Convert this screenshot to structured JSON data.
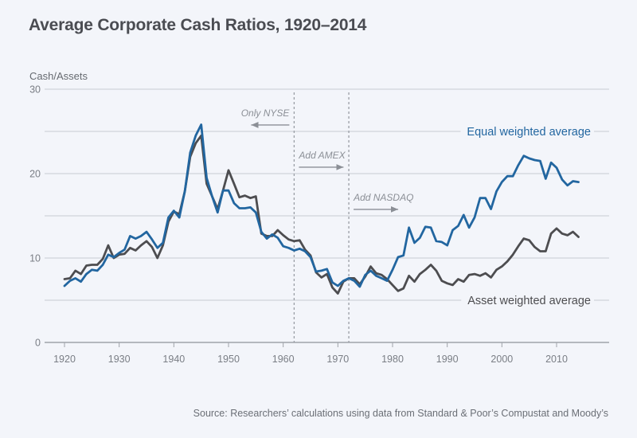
{
  "chart_data": {
    "type": "line",
    "title": "Average Corporate Cash Ratios, 1920–2014",
    "ylabel": "Cash/Assets",
    "xlabel": "",
    "xlim": [
      1920,
      2014
    ],
    "ylim": [
      0,
      30
    ],
    "x_ticks": [
      1920,
      1930,
      1940,
      1950,
      1960,
      1970,
      1980,
      1990,
      2000,
      2010
    ],
    "y_ticks": [
      0,
      10,
      20,
      30
    ],
    "y_gridlines": [
      5,
      10,
      15,
      20,
      25,
      30
    ],
    "grid": true,
    "legend_placement": "inline-right",
    "x": [
      1920,
      1921,
      1922,
      1923,
      1924,
      1925,
      1926,
      1927,
      1928,
      1929,
      1930,
      1931,
      1932,
      1933,
      1934,
      1935,
      1936,
      1937,
      1938,
      1939,
      1940,
      1941,
      1942,
      1943,
      1944,
      1945,
      1946,
      1947,
      1948,
      1949,
      1950,
      1951,
      1952,
      1953,
      1954,
      1955,
      1956,
      1957,
      1958,
      1959,
      1960,
      1961,
      1962,
      1963,
      1964,
      1965,
      1966,
      1967,
      1968,
      1969,
      1970,
      1971,
      1972,
      1973,
      1974,
      1975,
      1976,
      1977,
      1978,
      1979,
      1980,
      1981,
      1982,
      1983,
      1984,
      1985,
      1986,
      1987,
      1988,
      1989,
      1990,
      1991,
      1992,
      1993,
      1994,
      1995,
      1996,
      1997,
      1998,
      1999,
      2000,
      2001,
      2002,
      2003,
      2004,
      2005,
      2006,
      2007,
      2008,
      2009,
      2010,
      2011,
      2012,
      2013,
      2014
    ],
    "series": [
      {
        "name": "Equal weighted average",
        "color": "#2266a0",
        "values": [
          6.7,
          7.3,
          7.6,
          7.2,
          8.1,
          8.6,
          8.5,
          9.2,
          10.4,
          10.1,
          10.6,
          11.0,
          12.6,
          12.3,
          12.6,
          13.1,
          12.2,
          11.2,
          11.8,
          14.8,
          15.6,
          14.8,
          17.9,
          22.5,
          24.5,
          25.8,
          19.5,
          17.3,
          15.4,
          18.0,
          18.0,
          16.5,
          15.9,
          15.9,
          16.0,
          15.4,
          13.1,
          12.3,
          12.8,
          12.4,
          11.4,
          11.2,
          10.9,
          11.1,
          10.8,
          10.1,
          8.4,
          8.5,
          8.7,
          7.1,
          6.7,
          7.3,
          7.6,
          7.3,
          6.6,
          8.0,
          8.5,
          7.9,
          7.6,
          7.3,
          8.6,
          10.1,
          10.3,
          13.6,
          11.8,
          12.4,
          13.7,
          13.6,
          12.0,
          11.9,
          11.5,
          13.3,
          13.8,
          15.1,
          13.6,
          14.8,
          17.1,
          17.1,
          15.8,
          17.9,
          19.0,
          19.7,
          19.7,
          21.0,
          22.1,
          21.8,
          21.6,
          21.5,
          19.4,
          21.3,
          20.7,
          19.3,
          18.6,
          19.1,
          19.0
        ]
      },
      {
        "name": "Asset weighted average",
        "color": "#4d4d50",
        "values": [
          7.5,
          7.6,
          8.5,
          8.1,
          9.1,
          9.2,
          9.2,
          9.9,
          11.5,
          10.0,
          10.4,
          10.5,
          11.2,
          10.9,
          11.5,
          12.0,
          11.3,
          10.0,
          11.5,
          14.3,
          15.5,
          15.2,
          17.9,
          22.0,
          23.6,
          24.5,
          18.8,
          17.3,
          15.8,
          18.0,
          20.4,
          18.8,
          17.2,
          17.4,
          17.1,
          17.3,
          12.9,
          12.6,
          12.6,
          13.3,
          12.7,
          12.2,
          12.0,
          12.1,
          11.0,
          10.3,
          8.3,
          7.7,
          8.1,
          6.5,
          5.8,
          7.2,
          7.6,
          7.6,
          6.9,
          7.8,
          9.0,
          8.2,
          8.0,
          7.5,
          6.8,
          6.1,
          6.4,
          7.9,
          7.2,
          8.1,
          8.6,
          9.2,
          8.5,
          7.3,
          7.0,
          6.8,
          7.5,
          7.2,
          8.0,
          8.1,
          7.9,
          8.2,
          7.7,
          8.6,
          9.0,
          9.6,
          10.4,
          11.4,
          12.3,
          12.1,
          11.3,
          10.8,
          10.8,
          12.9,
          13.5,
          12.9,
          12.7,
          13.1,
          12.5
        ]
      }
    ],
    "vertical_markers": [
      1962,
      1972
    ],
    "annotations": [
      {
        "text": "Only NYSE",
        "direction": "left",
        "x_anchor": 1962,
        "y": 26.8
      },
      {
        "text": "Add AMEX",
        "direction": "right",
        "x_anchor": 1962,
        "y": 21.8
      },
      {
        "text": "Add NASDAQ",
        "direction": "right",
        "x_anchor": 1972,
        "y": 16.8
      }
    ],
    "legend": [
      {
        "label": "Equal weighted average",
        "series": 0,
        "y": 25
      },
      {
        "label": "Asset weighted average",
        "series": 1,
        "y": 5
      }
    ],
    "source": "Source: Researchers’ calculations using data from Standard & Poor’s Compustat and Moody’s"
  }
}
